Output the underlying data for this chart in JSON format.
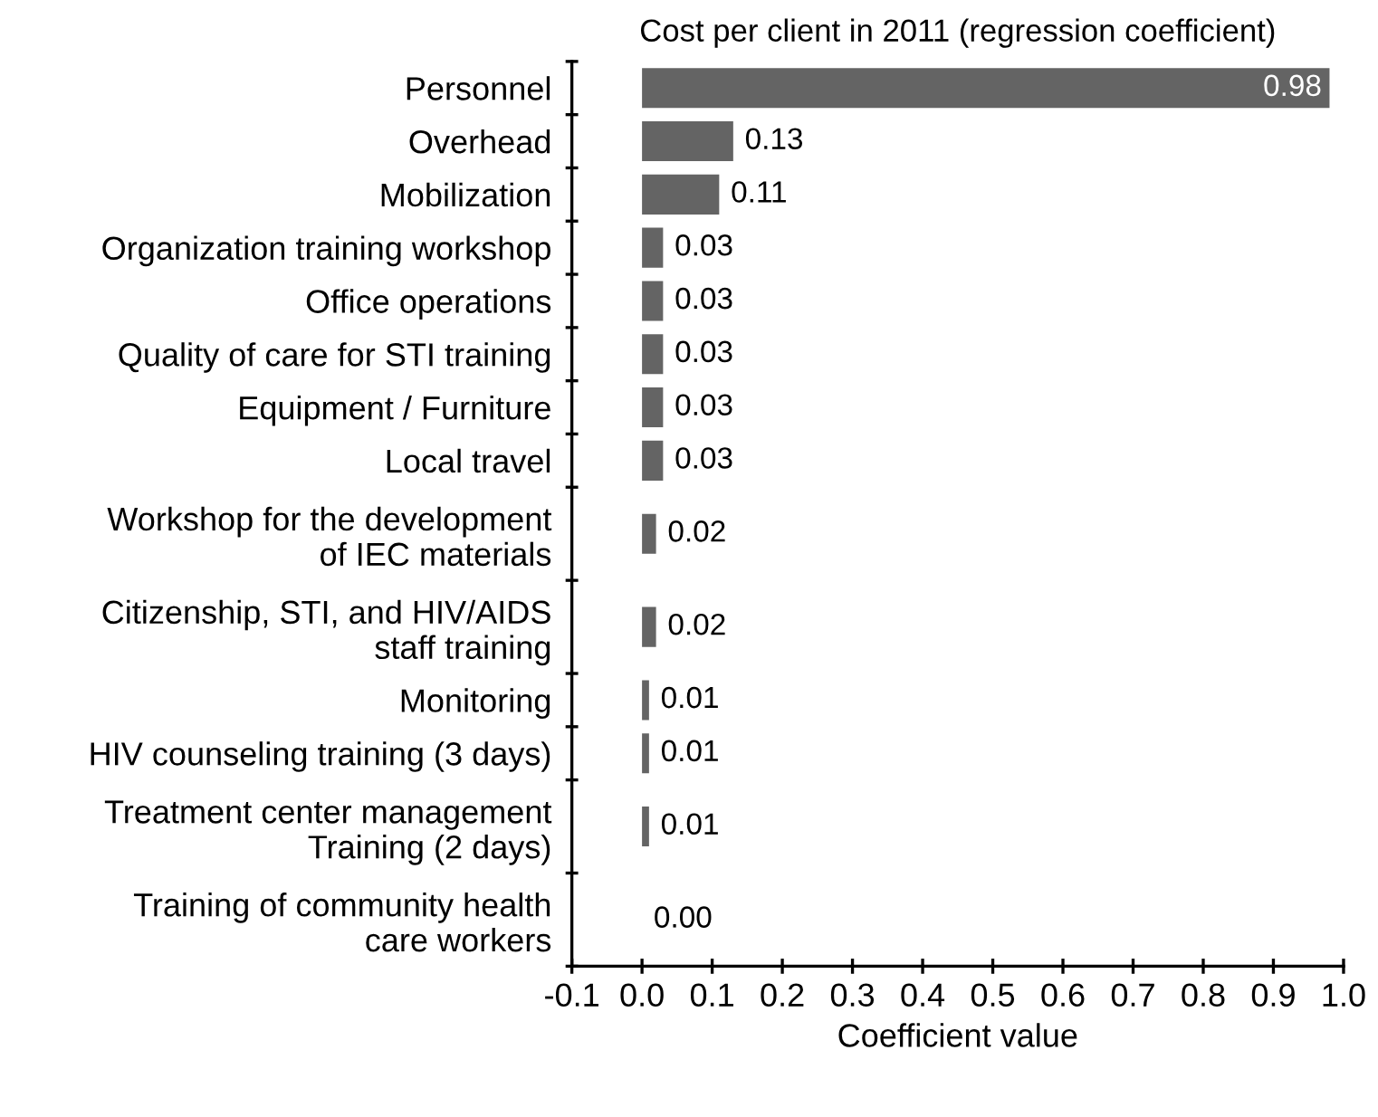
{
  "chart_data": {
    "type": "bar",
    "orientation": "horizontal",
    "title": "Cost per client in 2011 (regression coefficient)",
    "xlabel": "Coefficient value",
    "categories": [
      "Personnel",
      "Overhead",
      "Mobilization",
      "Organization training workshop",
      "Office operations",
      "Quality of care for STI training",
      "Equipment / Furniture",
      "Local travel",
      "Workshop for the development\nof IEC materials",
      "Citizenship, STI, and HIV/AIDS\nstaff training",
      "Monitoring",
      "HIV counseling training (3 days)",
      "Treatment center management\nTraining (2 days)",
      "Training of community health\ncare workers"
    ],
    "values": [
      0.98,
      0.13,
      0.11,
      0.03,
      0.03,
      0.03,
      0.03,
      0.03,
      0.02,
      0.02,
      0.01,
      0.01,
      0.01,
      0.0
    ],
    "value_labels": [
      "0.98",
      "0.13",
      "0.11",
      "0.03",
      "0.03",
      "0.03",
      "0.03",
      "0.03",
      "0.02",
      "0.02",
      "0.01",
      "0.01",
      "0.01",
      "0.00"
    ],
    "color": "#646464",
    "xlim": [
      -0.1,
      1.0
    ],
    "xticks": [
      -0.1,
      {
        "value": 0,
        "label": "0.0"
      },
      0.1,
      0.2,
      0.3,
      0.4,
      0.5,
      0.6,
      0.7,
      0.8,
      0.9,
      {
        "value": 1,
        "label": "1.0"
      }
    ],
    "grid": false,
    "legend": false
  }
}
